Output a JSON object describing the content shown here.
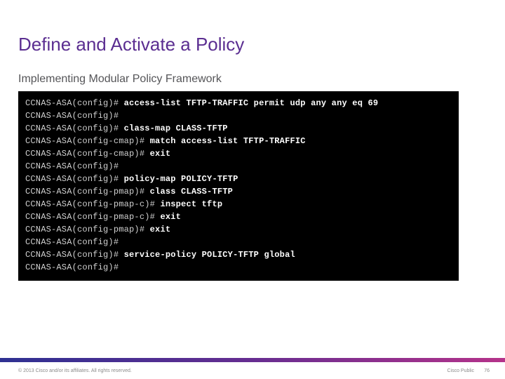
{
  "title": {
    "text": "Define and Activate a Policy",
    "color": "#5b2e91",
    "fontsize": 26
  },
  "subtitle": {
    "text": "Implementing Modular Policy Framework",
    "color": "#555558",
    "fontsize": 16
  },
  "terminal": {
    "background_color": "#000000",
    "text_color": "#ffffff",
    "prompt_color": "#d0d0d0",
    "font_family": "Courier New",
    "fontsize": 12,
    "lines": [
      {
        "prompt": "CCNAS-ASA(config)#",
        "command": "access-list TFTP-TRAFFIC permit udp any any eq 69"
      },
      {
        "prompt": "CCNAS-ASA(config)#",
        "command": ""
      },
      {
        "prompt": "CCNAS-ASA(config)#",
        "command": "class-map CLASS-TFTP"
      },
      {
        "prompt": "CCNAS-ASA(config-cmap)#",
        "command": "match access-list TFTP-TRAFFIC"
      },
      {
        "prompt": "CCNAS-ASA(config-cmap)#",
        "command": "exit"
      },
      {
        "prompt": "CCNAS-ASA(config)#",
        "command": ""
      },
      {
        "prompt": "CCNAS-ASA(config)#",
        "command": "policy-map POLICY-TFTP"
      },
      {
        "prompt": "CCNAS-ASA(config-pmap)#",
        "command": "class CLASS-TFTP"
      },
      {
        "prompt": "CCNAS-ASA(config-pmap-c)#",
        "command": "inspect tftp"
      },
      {
        "prompt": "CCNAS-ASA(config-pmap-c)#",
        "command": "exit"
      },
      {
        "prompt": "CCNAS-ASA(config-pmap)#",
        "command": "exit"
      },
      {
        "prompt": "CCNAS-ASA(config)#",
        "command": ""
      },
      {
        "prompt": "CCNAS-ASA(config)#",
        "command": "service-policy POLICY-TFTP global"
      },
      {
        "prompt": "CCNAS-ASA(config)#",
        "command": ""
      }
    ]
  },
  "footer": {
    "bar_gradient": [
      "#2e3192",
      "#662d91",
      "#b5338a"
    ],
    "copyright": "© 2013 Cisco and/or its affiliates. All rights reserved.",
    "label": "Cisco Public",
    "page_number": "76",
    "text_color": "#8a8a8a",
    "fontsize": 7
  }
}
